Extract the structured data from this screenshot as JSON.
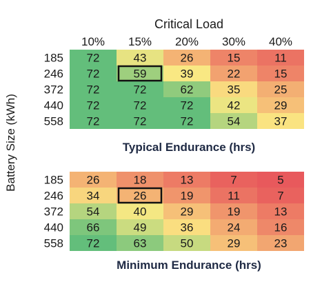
{
  "chart_data": {
    "type": "heatmap",
    "column_title": "Critical Load",
    "y_axis_label": "Battery Size (kWh)",
    "columns": [
      "10%",
      "15%",
      "20%",
      "30%",
      "40%"
    ],
    "rows": [
      "185",
      "246",
      "372",
      "440",
      "558"
    ],
    "panels": [
      {
        "title": "Typical Endurance (hrs)",
        "values": [
          [
            72,
            43,
            26,
            15,
            11
          ],
          [
            72,
            59,
            39,
            22,
            15
          ],
          [
            72,
            72,
            62,
            35,
            25
          ],
          [
            72,
            72,
            72,
            42,
            29
          ],
          [
            72,
            72,
            72,
            54,
            37
          ]
        ],
        "highlight": {
          "row": "246",
          "column": "15%"
        }
      },
      {
        "title": "Minimum Endurance (hrs)",
        "values": [
          [
            26,
            18,
            13,
            7,
            5
          ],
          [
            34,
            26,
            19,
            11,
            7
          ],
          [
            54,
            40,
            29,
            19,
            13
          ],
          [
            66,
            49,
            36,
            24,
            16
          ],
          [
            72,
            63,
            50,
            29,
            23
          ]
        ],
        "highlight": {
          "row": "246",
          "column": "15%"
        }
      }
    ],
    "color_scale": {
      "low": "#e8595c",
      "mid": "#fbe983",
      "high": "#63be7b",
      "min": 5,
      "max": 72
    }
  }
}
